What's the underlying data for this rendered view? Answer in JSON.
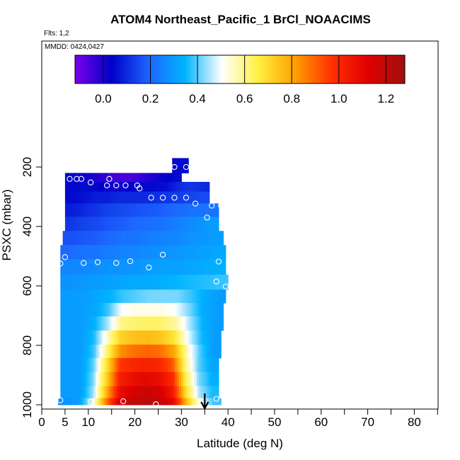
{
  "chart_data": {
    "type": "heatmap",
    "title": "ATOM4 Northeast_Pacific_1 BrCl_NOAACIMS",
    "flights_label": "Flts: 1,2",
    "date_label": "MMDD: 0424,0427",
    "xlabel": "Latitude (deg N)",
    "ylabel": "PSXC (mbar)",
    "xlim": [
      0,
      85
    ],
    "ylim": [
      1000,
      150
    ],
    "x_ticks": [
      0,
      5,
      10,
      20,
      30,
      40,
      50,
      60,
      70,
      80
    ],
    "x_minor_ticks": [
      15,
      25,
      35,
      45,
      55,
      65,
      75,
      85
    ],
    "y_ticks": [
      200,
      400,
      600,
      800,
      1000
    ],
    "colorbar": {
      "range": [
        -0.12,
        1.28
      ],
      "ticks": [
        0.0,
        0.2,
        0.4,
        0.6,
        0.8,
        1.0,
        1.2
      ],
      "tick_labels": [
        "0.0",
        "0.2",
        "0.4",
        "0.6",
        "0.8",
        "1.0",
        "1.2"
      ],
      "palette": [
        "#7a00e8",
        "#0000c8",
        "#1e64ff",
        "#00b4ff",
        "#ffffff",
        "#fff040",
        "#ffa000",
        "#ff3000",
        "#e00000",
        "#a01010"
      ]
    },
    "grid": false,
    "marker_latitude": 35,
    "pressure_bins": [
      {
        "p": 185,
        "lat": [
          28,
          31.5
        ],
        "v": [
          0.05
        ]
      },
      {
        "p": 235,
        "lat": [
          5,
          30
        ],
        "v": [
          0.05,
          0.02,
          0.0,
          -0.03,
          -0.05,
          -0.06,
          -0.03,
          0.0,
          0.03,
          0.05
        ]
      },
      {
        "p": 265,
        "lat": [
          5,
          36
        ],
        "v": [
          0.05,
          0.05,
          0.05,
          0.02,
          0.02,
          0.03,
          0.05,
          0.05,
          0.06,
          0.1,
          0.12,
          0.1
        ]
      },
      {
        "p": 300,
        "lat": [
          5,
          36
        ],
        "v": [
          0.05,
          0.06,
          0.08,
          0.08,
          0.1,
          0.1,
          0.1,
          0.11,
          0.12,
          0.13,
          0.14,
          0.15
        ]
      },
      {
        "p": 345,
        "lat": [
          5,
          38
        ],
        "v": [
          0.08,
          0.1,
          0.12,
          0.14,
          0.15,
          0.16,
          0.17,
          0.18,
          0.2,
          0.21,
          0.22,
          0.22
        ]
      },
      {
        "p": 390,
        "lat": [
          5,
          38
        ],
        "v": [
          0.12,
          0.14,
          0.15,
          0.17,
          0.18,
          0.2,
          0.21,
          0.22,
          0.24,
          0.26,
          0.28,
          0.3
        ]
      },
      {
        "p": 440,
        "lat": [
          4.5,
          39
        ],
        "v": [
          0.16,
          0.17,
          0.18,
          0.2,
          0.22,
          0.22,
          0.24,
          0.25,
          0.26,
          0.28,
          0.29,
          0.3
        ]
      },
      {
        "p": 485,
        "lat": [
          4,
          39.5
        ],
        "v": [
          0.2,
          0.22,
          0.22,
          0.24,
          0.25,
          0.26,
          0.27,
          0.28,
          0.29,
          0.3,
          0.31,
          0.32
        ]
      },
      {
        "p": 535,
        "lat": [
          4,
          39.5
        ],
        "v": [
          0.26,
          0.26,
          0.27,
          0.28,
          0.28,
          0.29,
          0.3,
          0.31,
          0.31,
          0.32,
          0.33,
          0.34
        ]
      },
      {
        "p": 590,
        "lat": [
          4,
          40
        ],
        "v": [
          0.28,
          0.29,
          0.3,
          0.31,
          0.32,
          0.33,
          0.33,
          0.34,
          0.35,
          0.36,
          0.37,
          0.38
        ]
      },
      {
        "p": 635,
        "lat": [
          4,
          39.5
        ],
        "v": [
          0.3,
          0.3,
          0.32,
          0.34,
          0.38,
          0.4,
          0.42,
          0.42,
          0.42,
          0.38,
          0.33,
          0.3
        ]
      },
      {
        "p": 680,
        "lat": [
          4,
          39
        ],
        "v": [
          0.3,
          0.3,
          0.32,
          0.38,
          0.5,
          0.52,
          0.52,
          0.52,
          0.5,
          0.42,
          0.33,
          0.3
        ]
      },
      {
        "p": 725,
        "lat": [
          4,
          39
        ],
        "v": [
          0.3,
          0.3,
          0.34,
          0.45,
          0.6,
          0.62,
          0.63,
          0.62,
          0.58,
          0.45,
          0.34,
          0.3
        ]
      },
      {
        "p": 775,
        "lat": [
          4,
          38.5
        ],
        "v": [
          0.3,
          0.3,
          0.36,
          0.55,
          0.72,
          0.75,
          0.76,
          0.74,
          0.68,
          0.5,
          0.36,
          0.3
        ]
      },
      {
        "p": 820,
        "lat": [
          4,
          38.5
        ],
        "v": [
          0.3,
          0.3,
          0.38,
          0.62,
          0.84,
          0.88,
          0.9,
          0.88,
          0.8,
          0.55,
          0.38,
          0.3
        ]
      },
      {
        "p": 865,
        "lat": [
          4,
          38
        ],
        "v": [
          0.3,
          0.3,
          0.4,
          0.68,
          0.96,
          1.0,
          1.02,
          1.0,
          0.92,
          0.6,
          0.4,
          0.32
        ]
      },
      {
        "p": 915,
        "lat": [
          4,
          38
        ],
        "v": [
          0.3,
          0.3,
          0.42,
          0.72,
          1.02,
          1.08,
          1.1,
          1.08,
          1.0,
          0.65,
          0.42,
          0.34
        ]
      },
      {
        "p": 960,
        "lat": [
          4,
          38
        ],
        "v": [
          0.3,
          0.3,
          0.44,
          0.78,
          1.08,
          1.15,
          1.18,
          1.15,
          1.05,
          0.7,
          0.45,
          0.36
        ]
      },
      {
        "p": 995,
        "lat": [
          3.5,
          38.5
        ],
        "v": [
          0.28,
          0.3,
          0.48,
          0.85,
          1.15,
          1.2,
          1.22,
          1.2,
          1.1,
          0.75,
          0.5,
          0.38
        ]
      }
    ],
    "points": [
      {
        "lat": 28.5,
        "p": 200
      },
      {
        "lat": 31,
        "p": 200
      },
      {
        "lat": 6,
        "p": 240
      },
      {
        "lat": 7.5,
        "p": 240
      },
      {
        "lat": 8.5,
        "p": 240
      },
      {
        "lat": 10.5,
        "p": 252
      },
      {
        "lat": 14,
        "p": 262
      },
      {
        "lat": 14.5,
        "p": 240
      },
      {
        "lat": 16,
        "p": 262
      },
      {
        "lat": 18,
        "p": 262
      },
      {
        "lat": 20.5,
        "p": 262
      },
      {
        "lat": 21,
        "p": 272
      },
      {
        "lat": 23.5,
        "p": 303
      },
      {
        "lat": 26,
        "p": 303
      },
      {
        "lat": 28.5,
        "p": 303
      },
      {
        "lat": 31,
        "p": 303
      },
      {
        "lat": 33,
        "p": 323
      },
      {
        "lat": 36.5,
        "p": 330
      },
      {
        "lat": 38.5,
        "p": 330
      },
      {
        "lat": 35.5,
        "p": 370
      },
      {
        "lat": 4,
        "p": 525
      },
      {
        "lat": 5,
        "p": 503
      },
      {
        "lat": 9,
        "p": 523
      },
      {
        "lat": 12,
        "p": 520
      },
      {
        "lat": 16,
        "p": 523
      },
      {
        "lat": 19,
        "p": 517
      },
      {
        "lat": 23,
        "p": 538
      },
      {
        "lat": 26,
        "p": 495
      },
      {
        "lat": 38,
        "p": 518
      },
      {
        "lat": 37.5,
        "p": 585
      },
      {
        "lat": 39.5,
        "p": 602
      },
      {
        "lat": 4,
        "p": 985
      },
      {
        "lat": 10.5,
        "p": 990
      },
      {
        "lat": 17.5,
        "p": 988
      },
      {
        "lat": 24.5,
        "p": 998
      },
      {
        "lat": 37.5,
        "p": 980
      }
    ]
  }
}
